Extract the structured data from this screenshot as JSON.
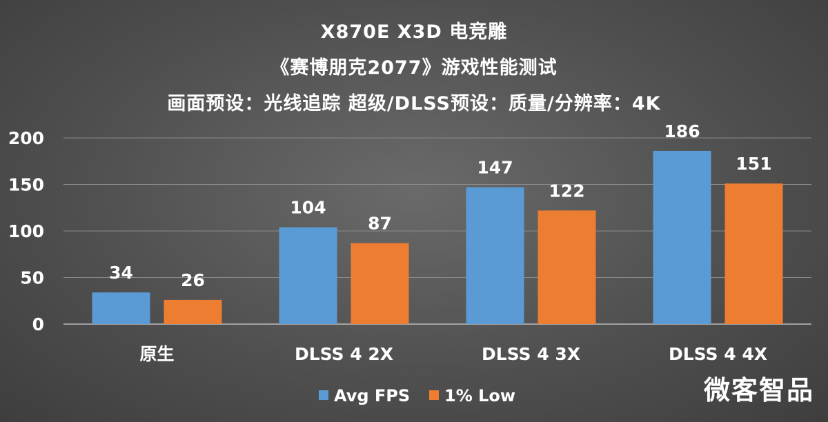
{
  "chart_data": {
    "type": "bar",
    "title": "X870E X3D 电竞雕",
    "subtitle": "《赛博朋克2077》游戏性能测试",
    "subtitle2": "画面预设：光线追踪 超级/DLSS预设：质量/分辨率：4K",
    "categories": [
      "原生",
      "DLSS 4 2X",
      "DLSS 4 3X",
      "DLSS 4 4X"
    ],
    "series": [
      {
        "name": "Avg FPS",
        "values": [
          34,
          104,
          147,
          186
        ],
        "color": "#5b9bd5"
      },
      {
        "name": "1% Low",
        "values": [
          26,
          87,
          122,
          151
        ],
        "color": "#ed7d31"
      }
    ],
    "ylim": [
      0,
      200
    ],
    "yticks": [
      0,
      50,
      100,
      150,
      200
    ],
    "xlabel": "",
    "ylabel": "",
    "grid": true,
    "legend": "bottom"
  },
  "watermark": "微客智品"
}
